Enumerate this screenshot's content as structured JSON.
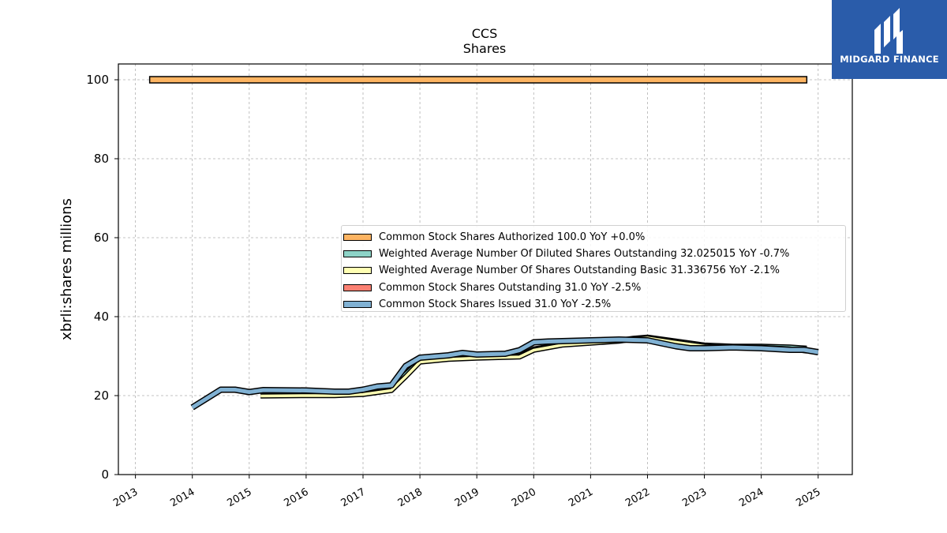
{
  "brand": {
    "name": "MIDGARD FINANCE",
    "color": "#2a5caa",
    "icon": "midgard-logo-icon"
  },
  "chart_data": {
    "type": "line",
    "title": "CCS",
    "subtitle": "Shares",
    "ylabel": "xbrli:shares millions",
    "xlabel": "",
    "xlim": [
      2012.7,
      2025.6
    ],
    "ylim": [
      0,
      104
    ],
    "yticks": [
      0,
      20,
      40,
      60,
      80,
      100
    ],
    "xticks": [
      2013,
      2014,
      2015,
      2016,
      2017,
      2018,
      2019,
      2020,
      2021,
      2022,
      2023,
      2024,
      2025
    ],
    "grid": true,
    "legend_position": "center-right",
    "series": [
      {
        "name": "Common Stock Shares Authorized  100.0 YoY +0.0%",
        "color": "#fdb462",
        "x": [
          2013.25,
          2024.8
        ],
        "y": [
          100,
          100
        ]
      },
      {
        "name": "Weighted Average Number Of Diluted Shares Outstanding  32.025015 YoY -0.7%",
        "color": "#8dd3c7",
        "x": [
          2015.2,
          2016.0,
          2016.5,
          2017.0,
          2017.5,
          2017.75,
          2018.0,
          2018.5,
          2019.0,
          2019.5,
          2019.75,
          2020.0,
          2020.5,
          2021.0,
          2021.5,
          2021.75,
          2022.0,
          2022.5,
          2023.0,
          2023.5,
          2024.0,
          2024.5,
          2024.8
        ],
        "y": [
          20.0,
          20.2,
          20.2,
          20.5,
          21.7,
          25.5,
          28.8,
          29.5,
          29.8,
          30.0,
          30.0,
          31.8,
          33.0,
          33.5,
          34.0,
          34.5,
          34.8,
          33.8,
          32.8,
          32.5,
          32.5,
          32.3,
          32.0
        ]
      },
      {
        "name": "Weighted Average Number Of Shares Outstanding Basic  31.336756 YoY -2.1%",
        "color": "#ffffb3",
        "x": [
          2015.2,
          2016.0,
          2016.5,
          2017.0,
          2017.5,
          2017.75,
          2018.0,
          2018.5,
          2019.0,
          2019.5,
          2019.75,
          2020.0,
          2020.5,
          2021.0,
          2021.5,
          2021.75,
          2022.0,
          2022.5,
          2023.0,
          2023.5,
          2024.0,
          2024.5,
          2024.8
        ],
        "y": [
          19.9,
          20.0,
          20.0,
          20.3,
          21.3,
          24.8,
          28.5,
          29.2,
          29.5,
          29.7,
          29.8,
          31.5,
          32.8,
          33.3,
          33.8,
          34.3,
          34.6,
          33.5,
          32.5,
          32.2,
          32.2,
          31.8,
          31.3
        ]
      },
      {
        "name": "Common Stock Shares Outstanding  31.0 YoY -2.5%",
        "color": "#fb8072",
        "x": [
          2014.0,
          2014.5,
          2014.75,
          2015.0,
          2015.25,
          2016.0,
          2016.5,
          2016.75,
          2017.0,
          2017.25,
          2017.5,
          2017.75,
          2018.0,
          2018.5,
          2018.75,
          2019.0,
          2019.5,
          2019.75,
          2020.0,
          2020.25,
          2021.0,
          2021.5,
          2022.0,
          2022.5,
          2022.75,
          2023.0,
          2023.5,
          2024.0,
          2024.25,
          2024.5,
          2024.75,
          2025.0
        ],
        "y": [
          17.0,
          21.5,
          21.5,
          20.9,
          21.4,
          21.3,
          21.0,
          21.0,
          21.5,
          22.3,
          22.6,
          27.5,
          29.6,
          30.2,
          30.8,
          30.4,
          30.6,
          31.5,
          33.5,
          33.7,
          34.0,
          34.2,
          34.0,
          32.5,
          32.0,
          32.0,
          32.2,
          32.0,
          31.8,
          31.6,
          31.6,
          31.0
        ]
      },
      {
        "name": "Common Stock Shares Issued  31.0 YoY -2.5%",
        "color": "#80b1d3",
        "x": [
          2014.0,
          2014.5,
          2014.75,
          2015.0,
          2015.25,
          2016.0,
          2016.5,
          2016.75,
          2017.0,
          2017.25,
          2017.5,
          2017.75,
          2018.0,
          2018.5,
          2018.75,
          2019.0,
          2019.5,
          2019.75,
          2020.0,
          2020.25,
          2021.0,
          2021.5,
          2022.0,
          2022.5,
          2022.75,
          2023.0,
          2023.5,
          2024.0,
          2024.25,
          2024.5,
          2024.75,
          2025.0
        ],
        "y": [
          17.0,
          21.5,
          21.5,
          20.9,
          21.4,
          21.3,
          21.0,
          21.0,
          21.5,
          22.3,
          22.6,
          27.5,
          29.6,
          30.2,
          30.8,
          30.4,
          30.6,
          31.5,
          33.5,
          33.7,
          34.0,
          34.2,
          34.0,
          32.5,
          32.0,
          32.0,
          32.2,
          32.0,
          31.8,
          31.6,
          31.6,
          31.0
        ]
      }
    ]
  }
}
